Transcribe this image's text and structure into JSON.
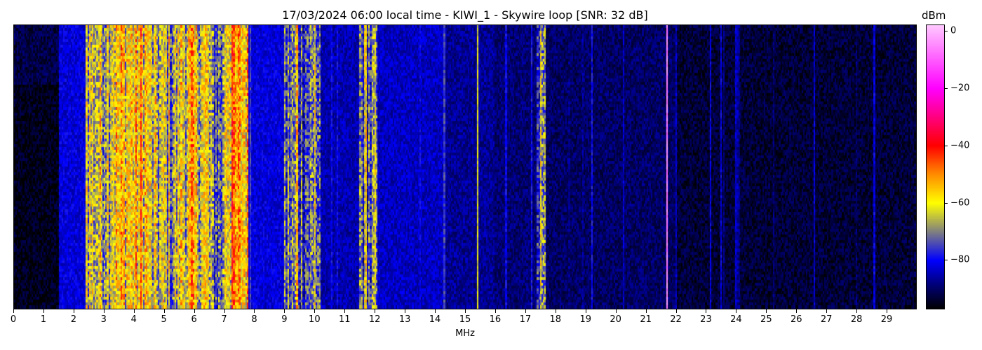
{
  "chart_data": {
    "type": "heatmap",
    "title": "17/03/2024 06:00 local time - KIWI_1 - Skywire loop [SNR: 32 dB]",
    "xlabel": "MHz",
    "ylabel": "",
    "xlim": [
      0,
      30
    ],
    "x_ticks": [
      "0",
      "1",
      "2",
      "3",
      "4",
      "5",
      "6",
      "7",
      "8",
      "9",
      "10",
      "11",
      "12",
      "13",
      "14",
      "15",
      "16",
      "17",
      "18",
      "19",
      "20",
      "21",
      "22",
      "23",
      "24",
      "25",
      "26",
      "27",
      "28",
      "29"
    ],
    "colorbar": {
      "label": "dBm",
      "range": [
        -97,
        2
      ],
      "ticks": [
        "0",
        "−20",
        "−40",
        "−60",
        "−80"
      ],
      "tick_values": [
        0,
        -20,
        -40,
        -60,
        -80
      ],
      "colormap": [
        {
          "v": -97,
          "color": "#000000"
        },
        {
          "v": -88,
          "color": "#000080"
        },
        {
          "v": -80,
          "color": "#0000ff"
        },
        {
          "v": -70,
          "color": "#808080"
        },
        {
          "v": -60,
          "color": "#ffff00"
        },
        {
          "v": -50,
          "color": "#ff8c00"
        },
        {
          "v": -40,
          "color": "#ff0000"
        },
        {
          "v": -20,
          "color": "#ff00ff"
        },
        {
          "v": 2,
          "color": "#ffc8ff"
        }
      ]
    },
    "band_mean_dbm": [
      {
        "from": 0,
        "to": 1.5,
        "dbm": -92
      },
      {
        "from": 1.5,
        "to": 2.4,
        "dbm": -82
      },
      {
        "from": 2.4,
        "to": 3.2,
        "dbm": -63
      },
      {
        "from": 3.2,
        "to": 4.5,
        "dbm": -58
      },
      {
        "from": 4.5,
        "to": 5.5,
        "dbm": -66
      },
      {
        "from": 5.5,
        "to": 6.5,
        "dbm": -61
      },
      {
        "from": 6.5,
        "to": 7.0,
        "dbm": -72
      },
      {
        "from": 7.0,
        "to": 7.8,
        "dbm": -56
      },
      {
        "from": 7.8,
        "to": 9.0,
        "dbm": -82
      },
      {
        "from": 9.0,
        "to": 10.2,
        "dbm": -73
      },
      {
        "from": 10.2,
        "to": 11.5,
        "dbm": -85
      },
      {
        "from": 11.5,
        "to": 12.1,
        "dbm": -72
      },
      {
        "from": 12.1,
        "to": 14.3,
        "dbm": -84
      },
      {
        "from": 14.3,
        "to": 16.0,
        "dbm": -87
      },
      {
        "from": 16.0,
        "to": 17.4,
        "dbm": -89
      },
      {
        "from": 17.4,
        "to": 17.7,
        "dbm": -72
      },
      {
        "from": 17.7,
        "to": 22.0,
        "dbm": -90
      },
      {
        "from": 22.0,
        "to": 30.0,
        "dbm": -93
      }
    ],
    "carriers": [
      {
        "mhz": 4.2,
        "dbm": -45
      },
      {
        "mhz": 5.9,
        "dbm": -47
      },
      {
        "mhz": 7.25,
        "dbm": -42
      },
      {
        "mhz": 9.4,
        "dbm": -55
      },
      {
        "mhz": 10.0,
        "dbm": -60
      },
      {
        "mhz": 11.7,
        "dbm": -58
      },
      {
        "mhz": 15.4,
        "dbm": -62
      },
      {
        "mhz": 17.5,
        "dbm": -62
      },
      {
        "mhz": 21.7,
        "dbm": -5
      }
    ]
  }
}
